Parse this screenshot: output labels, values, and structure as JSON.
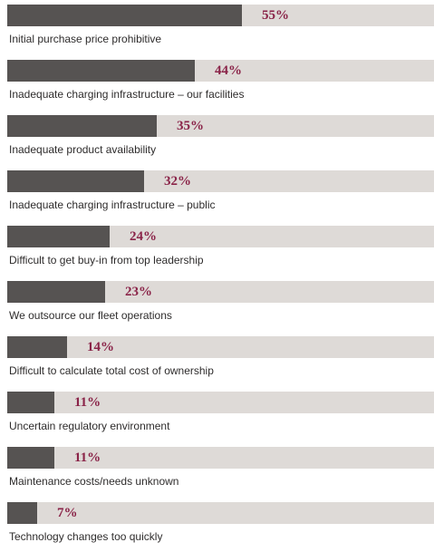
{
  "chart_data": {
    "type": "bar",
    "orientation": "horizontal",
    "categories": [
      "Initial purchase price prohibitive",
      "Inadequate charging infrastructure – our facilities",
      "Inadequate product availability",
      "Inadequate charging infrastructure – public",
      "Difficult to get buy-in from top leadership",
      "We outsource our fleet operations",
      "Difficult to calculate total cost of ownership",
      "Uncertain regulatory environment",
      "Maintenance costs/needs unknown",
      "Technology changes too quickly"
    ],
    "values": [
      55,
      44,
      35,
      32,
      24,
      23,
      14,
      11,
      11,
      7
    ],
    "value_labels": [
      "55%",
      "44%",
      "35%",
      "32%",
      "24%",
      "23%",
      "14%",
      "11%",
      "11%",
      "7%"
    ],
    "unit": "%",
    "xlim": [
      0,
      100
    ],
    "title": "",
    "xlabel": "",
    "ylabel": "",
    "grid": false,
    "legend": "none",
    "colors": {
      "bar_fill": "#565352",
      "bar_track": "#dedad7",
      "value_text": "#8a2348",
      "label_text": "#2e2c2c"
    }
  }
}
